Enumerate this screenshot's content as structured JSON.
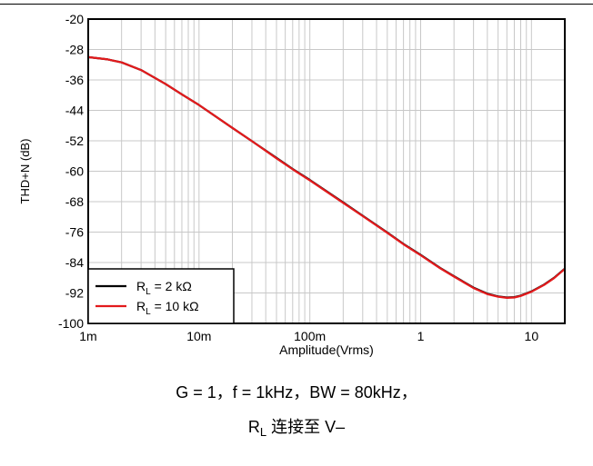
{
  "chart_data": {
    "type": "line",
    "ylabel": "THD+N (dB)",
    "xlabel": "Amplitude(Vrms)",
    "x_scale": "log",
    "xlim": [
      0.001,
      20
    ],
    "ylim": [
      -100,
      -20
    ],
    "x_ticks": [
      {
        "value": 0.001,
        "label": "1m"
      },
      {
        "value": 0.01,
        "label": "10m"
      },
      {
        "value": 0.1,
        "label": "100m"
      },
      {
        "value": 1,
        "label": "1"
      },
      {
        "value": 10,
        "label": "10"
      }
    ],
    "y_ticks": [
      -20,
      -28,
      -36,
      -44,
      -52,
      -60,
      -68,
      -76,
      -84,
      -92,
      -100
    ],
    "grid": true,
    "legend_position": "bottom-left",
    "series": [
      {
        "name": "RL = 2 kΩ",
        "legend_main": "R",
        "legend_sub": "L",
        "legend_rest": " = 2 kΩ",
        "color": "#000000",
        "x": [
          0.001,
          0.0015,
          0.002,
          0.003,
          0.005,
          0.007,
          0.01,
          0.02,
          0.03,
          0.05,
          0.07,
          0.1,
          0.2,
          0.3,
          0.5,
          0.7,
          1,
          1.5,
          2,
          3,
          4,
          5,
          6,
          7,
          8,
          10,
          13,
          16,
          20
        ],
        "y": [
          -30,
          -30.6,
          -31.4,
          -33.4,
          -37.1,
          -39.8,
          -42.6,
          -48.6,
          -52.1,
          -56.5,
          -59.4,
          -62.3,
          -68.2,
          -71.7,
          -76.1,
          -79.1,
          -82.0,
          -85.4,
          -87.6,
          -90.6,
          -92.2,
          -92.9,
          -93.2,
          -93.1,
          -92.7,
          -91.6,
          -89.8,
          -88.0,
          -85.6
        ]
      },
      {
        "name": "RL = 10 kΩ",
        "legend_main": "R",
        "legend_sub": "L",
        "legend_rest": " = 10 kΩ",
        "color": "#e31a1c",
        "x": [
          0.001,
          0.0015,
          0.002,
          0.003,
          0.005,
          0.007,
          0.01,
          0.02,
          0.03,
          0.05,
          0.07,
          0.1,
          0.2,
          0.3,
          0.5,
          0.7,
          1,
          1.5,
          2,
          3,
          4,
          5,
          6,
          7,
          8,
          10,
          13,
          16,
          20
        ],
        "y": [
          -30,
          -30.6,
          -31.4,
          -33.4,
          -37.1,
          -39.8,
          -42.6,
          -48.6,
          -52.1,
          -56.6,
          -59.5,
          -62.4,
          -68.3,
          -71.8,
          -76.2,
          -79.2,
          -82.1,
          -85.5,
          -87.7,
          -90.7,
          -92.3,
          -93.0,
          -93.3,
          -93.2,
          -92.8,
          -91.7,
          -89.9,
          -88.1,
          -85.7
        ]
      }
    ]
  },
  "caption": {
    "line1": "G = 1，f = 1kHz，BW = 80kHz，",
    "line2_main": "R",
    "line2_sub": "L",
    "line2_rest": " 连接至 V–"
  }
}
